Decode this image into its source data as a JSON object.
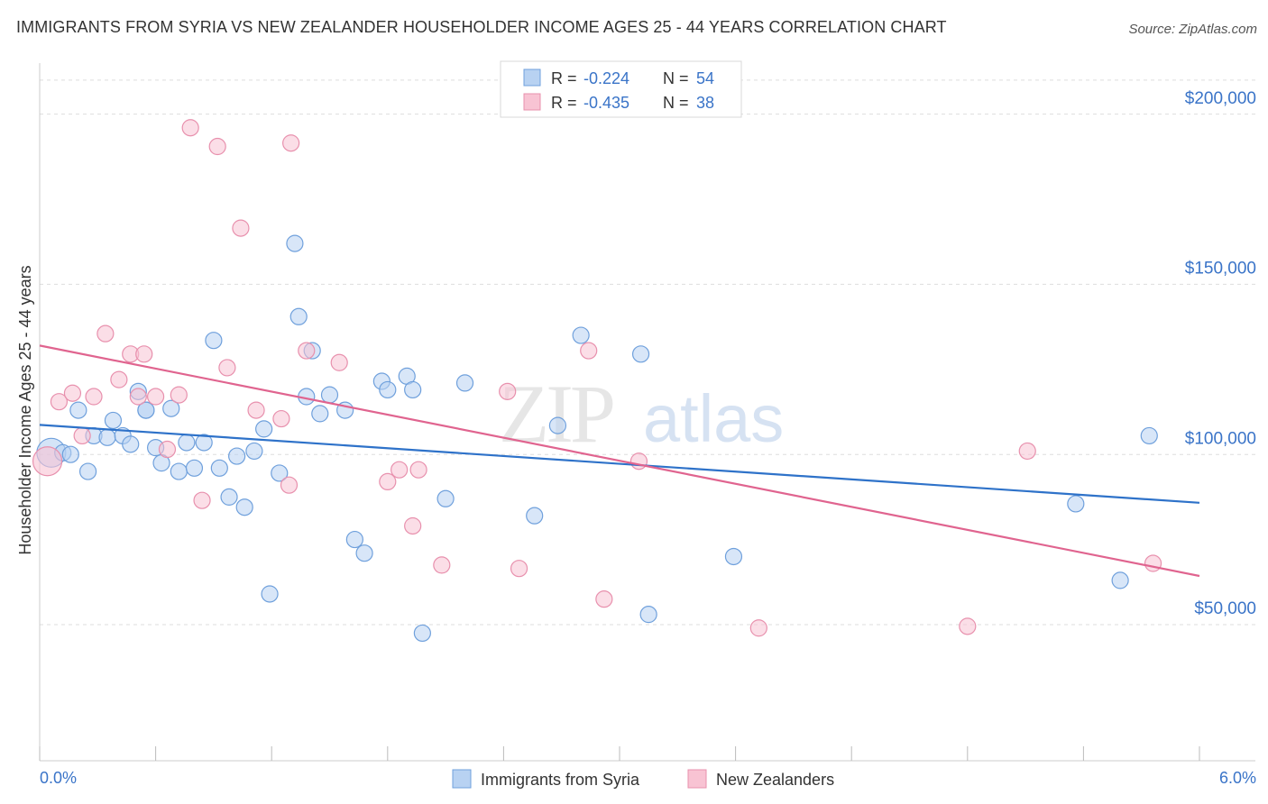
{
  "title": "IMMIGRANTS FROM SYRIA VS NEW ZEALANDER HOUSEHOLDER INCOME AGES 25 - 44 YEARS CORRELATION CHART",
  "source": "Source: ZipAtlas.com",
  "watermark": {
    "zip": "ZIP",
    "atlas": "atlas"
  },
  "colors": {
    "blue_fill": "#b8d2f2",
    "blue_stroke": "#6fa0dc",
    "blue_line": "#2e72c9",
    "pink_fill": "#f8c3d3",
    "pink_stroke": "#e890ad",
    "pink_line": "#e0648f",
    "accent_text": "#3a74c8",
    "grid": "#dddddd"
  },
  "legend": {
    "series1": {
      "r_label": "R =",
      "r_value": "-0.224",
      "n_label": "N =",
      "n_value": "54"
    },
    "series2": {
      "r_label": "R =",
      "r_value": "-0.435",
      "n_label": "N =",
      "n_value": "38"
    }
  },
  "chart_data": {
    "type": "scatter",
    "title": "IMMIGRANTS FROM SYRIA VS NEW ZEALANDER HOUSEHOLDER INCOME AGES 25 - 44 YEARS CORRELATION CHART",
    "xlabel": "",
    "ylabel": "Householder Income Ages 25 - 44 years",
    "xlim": [
      0,
      6.0
    ],
    "ylim": [
      5000,
      210000
    ],
    "x_tick_labels": [
      {
        "value": 0,
        "label": "0.0%"
      },
      {
        "value": 6.0,
        "label": "6.0%"
      }
    ],
    "y_ticks": [
      {
        "value": 50000,
        "label": "$50,000"
      },
      {
        "value": 100000,
        "label": "$100,000"
      },
      {
        "value": 150000,
        "label": "$150,000"
      },
      {
        "value": 200000,
        "label": "$200,000"
      }
    ],
    "grid": true,
    "legend_position": "top-center",
    "series": [
      {
        "name": "Immigrants from Syria",
        "color": "#6fa0dc",
        "trend": {
          "x": [
            0,
            6.0
          ],
          "y": [
            103700,
            80800
          ]
        },
        "points": [
          {
            "x": 0.06,
            "y": 95500,
            "big": true
          },
          {
            "x": 0.12,
            "y": 95500
          },
          {
            "x": 0.16,
            "y": 95000
          },
          {
            "x": 0.2,
            "y": 108000
          },
          {
            "x": 0.25,
            "y": 90000
          },
          {
            "x": 0.28,
            "y": 100500
          },
          {
            "x": 0.35,
            "y": 100000
          },
          {
            "x": 0.38,
            "y": 105000
          },
          {
            "x": 0.43,
            "y": 100500
          },
          {
            "x": 0.47,
            "y": 98000
          },
          {
            "x": 0.51,
            "y": 113500
          },
          {
            "x": 0.55,
            "y": 108000
          },
          {
            "x": 0.6,
            "y": 97000
          },
          {
            "x": 0.63,
            "y": 92500
          },
          {
            "x": 0.68,
            "y": 108500
          },
          {
            "x": 0.72,
            "y": 90000
          },
          {
            "x": 0.76,
            "y": 98500
          },
          {
            "x": 0.8,
            "y": 91000
          },
          {
            "x": 0.85,
            "y": 98500
          },
          {
            "x": 0.9,
            "y": 128500
          },
          {
            "x": 0.93,
            "y": 91000
          },
          {
            "x": 0.98,
            "y": 82500
          },
          {
            "x": 1.02,
            "y": 94500
          },
          {
            "x": 1.06,
            "y": 79500
          },
          {
            "x": 1.11,
            "y": 96000
          },
          {
            "x": 1.16,
            "y": 102500
          },
          {
            "x": 1.19,
            "y": 54000
          },
          {
            "x": 1.24,
            "y": 89500
          },
          {
            "x": 1.32,
            "y": 157000
          },
          {
            "x": 1.34,
            "y": 135500
          },
          {
            "x": 1.38,
            "y": 112000
          },
          {
            "x": 1.41,
            "y": 125500
          },
          {
            "x": 1.45,
            "y": 107000
          },
          {
            "x": 1.5,
            "y": 112500
          },
          {
            "x": 1.58,
            "y": 108000
          },
          {
            "x": 1.63,
            "y": 70000
          },
          {
            "x": 1.68,
            "y": 66000
          },
          {
            "x": 1.77,
            "y": 116500
          },
          {
            "x": 1.8,
            "y": 114000
          },
          {
            "x": 1.9,
            "y": 118000
          },
          {
            "x": 1.93,
            "y": 114000
          },
          {
            "x": 1.98,
            "y": 42500
          },
          {
            "x": 2.1,
            "y": 82000
          },
          {
            "x": 2.2,
            "y": 116000
          },
          {
            "x": 2.56,
            "y": 77000
          },
          {
            "x": 2.68,
            "y": 103500
          },
          {
            "x": 2.8,
            "y": 130000
          },
          {
            "x": 3.11,
            "y": 124500
          },
          {
            "x": 3.15,
            "y": 48000
          },
          {
            "x": 3.59,
            "y": 65000
          },
          {
            "x": 5.36,
            "y": 80500
          },
          {
            "x": 5.59,
            "y": 58000
          },
          {
            "x": 5.74,
            "y": 100500
          },
          {
            "x": 0.55,
            "y": 108000
          }
        ]
      },
      {
        "name": "New Zealanders",
        "color": "#e890ad",
        "trend": {
          "x": [
            0,
            6.0
          ],
          "y": [
            127000,
            59300
          ]
        },
        "points": [
          {
            "x": 0.04,
            "y": 93000,
            "big": true
          },
          {
            "x": 0.1,
            "y": 110500
          },
          {
            "x": 0.17,
            "y": 113000
          },
          {
            "x": 0.22,
            "y": 100500
          },
          {
            "x": 0.28,
            "y": 112000
          },
          {
            "x": 0.34,
            "y": 130500
          },
          {
            "x": 0.41,
            "y": 117000
          },
          {
            "x": 0.47,
            "y": 124500
          },
          {
            "x": 0.54,
            "y": 124500
          },
          {
            "x": 0.6,
            "y": 112000
          },
          {
            "x": 0.66,
            "y": 96500
          },
          {
            "x": 0.72,
            "y": 112500
          },
          {
            "x": 0.78,
            "y": 191000
          },
          {
            "x": 0.84,
            "y": 81500
          },
          {
            "x": 0.92,
            "y": 185500
          },
          {
            "x": 0.97,
            "y": 120500
          },
          {
            "x": 1.04,
            "y": 161500
          },
          {
            "x": 1.12,
            "y": 108000
          },
          {
            "x": 1.25,
            "y": 105500
          },
          {
            "x": 1.29,
            "y": 86000
          },
          {
            "x": 1.3,
            "y": 186500
          },
          {
            "x": 1.38,
            "y": 125500
          },
          {
            "x": 1.55,
            "y": 122000
          },
          {
            "x": 1.8,
            "y": 87000
          },
          {
            "x": 1.86,
            "y": 90500
          },
          {
            "x": 1.93,
            "y": 74000
          },
          {
            "x": 1.96,
            "y": 90500
          },
          {
            "x": 2.08,
            "y": 62500
          },
          {
            "x": 2.42,
            "y": 113500
          },
          {
            "x": 2.48,
            "y": 61500
          },
          {
            "x": 2.84,
            "y": 125500
          },
          {
            "x": 2.92,
            "y": 52500
          },
          {
            "x": 3.1,
            "y": 93000
          },
          {
            "x": 3.72,
            "y": 44000
          },
          {
            "x": 4.8,
            "y": 44500
          },
          {
            "x": 5.11,
            "y": 96000
          },
          {
            "x": 5.76,
            "y": 63000
          },
          {
            "x": 0.51,
            "y": 112000
          }
        ]
      }
    ]
  }
}
